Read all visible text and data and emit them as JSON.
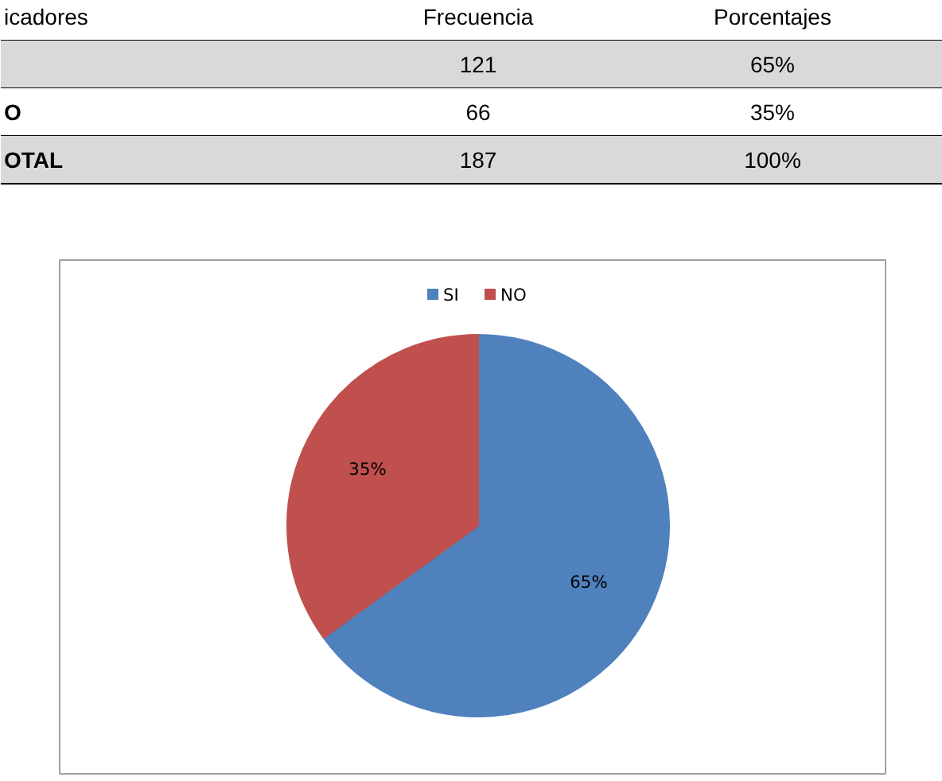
{
  "chart_data": {
    "type": "pie",
    "categories": [
      "SI",
      "NO"
    ],
    "values": [
      65,
      35
    ],
    "colors": [
      "#4f81bd",
      "#c0504d"
    ],
    "value_labels": [
      "65%",
      "35%"
    ],
    "legend": "top",
    "annotations": [
      "icadores",
      "Frecuencia",
      "Porcentajes",
      "121",
      "65%",
      "O",
      "66",
      "35%",
      "OTAL",
      "187",
      "100%"
    ]
  }
}
